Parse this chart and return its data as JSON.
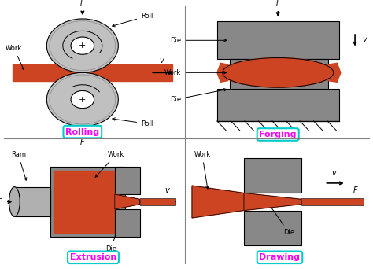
{
  "bg_color": "#ffffff",
  "gray_color": "#888888",
  "gray_light": "#b0b0b0",
  "work_color": "#cc4422",
  "roll_color": "#c0c0c0",
  "label_color": "#ff00ff",
  "box_edge_color": "#00cccc",
  "black": "#000000",
  "processes": [
    "Rolling",
    "Forging",
    "Extrusion",
    "Drawing"
  ]
}
